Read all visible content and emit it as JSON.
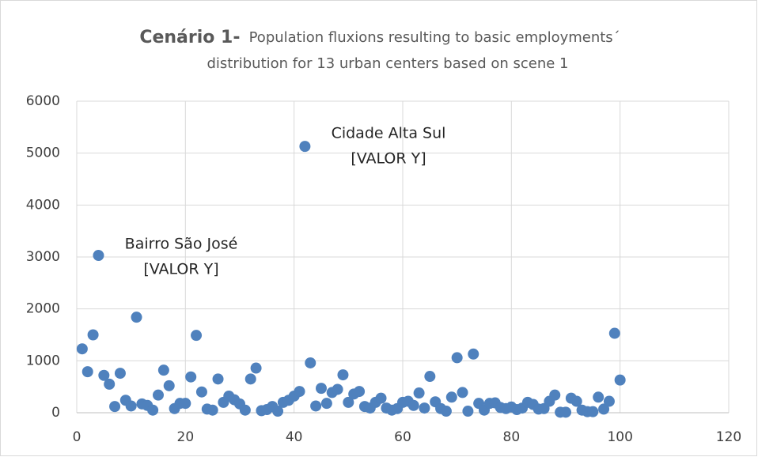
{
  "chart_data": {
    "type": "scatter",
    "title": [
      "Cenário 1-",
      "Population fluxions resulting to basic employments´",
      "distribution for 13 urban centers based on scene 1"
    ],
    "x": [
      1,
      2,
      3,
      4,
      5,
      6,
      7,
      8,
      9,
      10,
      11,
      12,
      13,
      14,
      15,
      16,
      17,
      18,
      19,
      20,
      21,
      22,
      23,
      24,
      25,
      26,
      27,
      28,
      29,
      30,
      31,
      32,
      33,
      34,
      35,
      36,
      37,
      38,
      39,
      40,
      41,
      42,
      43,
      44,
      45,
      46,
      47,
      48,
      49,
      50,
      51,
      52,
      53,
      54,
      55,
      56,
      57,
      58,
      59,
      60,
      61,
      62,
      63,
      64,
      65,
      66,
      67,
      68,
      69,
      70,
      71,
      72,
      73,
      74,
      75,
      76,
      77,
      78,
      79,
      80,
      81,
      82,
      83,
      84,
      85,
      86,
      87,
      88,
      89,
      90,
      91,
      92,
      93,
      94,
      95,
      96,
      97,
      98,
      99,
      100
    ],
    "values": [
      1230,
      790,
      1500,
      3030,
      720,
      550,
      120,
      760,
      240,
      130,
      1840,
      170,
      140,
      50,
      340,
      820,
      520,
      80,
      180,
      180,
      690,
      1490,
      400,
      70,
      50,
      650,
      200,
      320,
      250,
      170,
      50,
      650,
      860,
      40,
      60,
      120,
      30,
      200,
      240,
      320,
      410,
      5130,
      960,
      130,
      470,
      180,
      390,
      450,
      730,
      200,
      360,
      410,
      120,
      90,
      200,
      280,
      90,
      50,
      80,
      200,
      220,
      140,
      380,
      90,
      700,
      210,
      80,
      30,
      300,
      1060,
      390,
      30,
      1130,
      180,
      50,
      180,
      190,
      100,
      80,
      110,
      60,
      90,
      200,
      160,
      70,
      80,
      220,
      340,
      10,
      10,
      280,
      220,
      50,
      20,
      20,
      300,
      70,
      220,
      1530,
      630
    ],
    "color": "#4f81bd",
    "xlim": [
      0,
      120
    ],
    "xticks": [
      0,
      20,
      40,
      60,
      80,
      100,
      120
    ],
    "ylim": [
      0,
      6000
    ],
    "yticks": [
      0,
      1000,
      2000,
      3000,
      4000,
      5000,
      6000
    ],
    "grid": true,
    "annotations": [
      [
        "Cidade Alta Sul",
        "[VALOR Y]"
      ],
      [
        "Bairro São José",
        "[VALOR Y]"
      ]
    ]
  }
}
